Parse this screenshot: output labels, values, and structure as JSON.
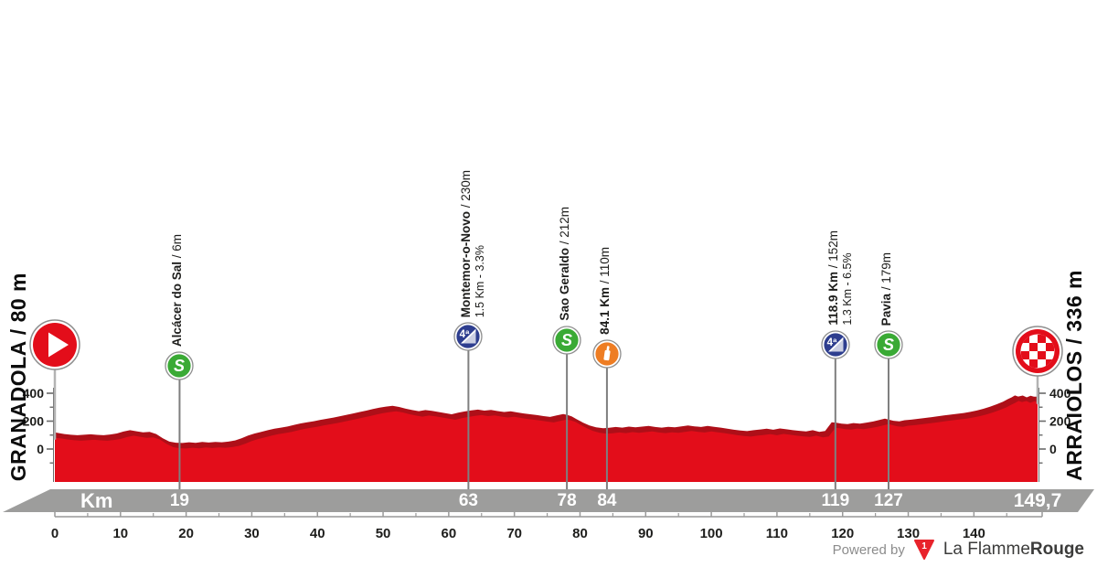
{
  "route": {
    "start_label": "GRANADOLA / 80 m",
    "finish_label": "ARRAIOLOS / 336 m",
    "km_axis_label": "Km",
    "total_km_label": "149,7",
    "label_separator": " / "
  },
  "markers": [
    {
      "type": "start",
      "km": 0,
      "icon_y": 377
    },
    {
      "type": "sprint",
      "km": 19,
      "label": "Alcácer do Sal",
      "elevation": "6m",
      "band_km": "19",
      "icon_y": 400
    },
    {
      "type": "climb_cat4",
      "km": 63,
      "label": "Montemor-o-Novo",
      "elevation": "230m",
      "detail": "1.5 Km - 3.3%",
      "band_km": "63",
      "icon_y": 368
    },
    {
      "type": "sprint",
      "km": 78,
      "label": "Sao Geraldo",
      "elevation": "212m",
      "band_km": "78",
      "icon_y": 372
    },
    {
      "type": "feed",
      "km": 84.1,
      "label": "84.1 Km",
      "elevation": "110m",
      "band_km": "84",
      "icon_y": 387
    },
    {
      "type": "climb_cat4",
      "km": 118.9,
      "label": "118.9 Km",
      "elevation": "152m",
      "detail": "1.3 Km - 6.5%",
      "band_km": "119",
      "icon_y": 377
    },
    {
      "type": "sprint",
      "km": 127,
      "label": "Pavia",
      "elevation": "179m",
      "band_km": "127",
      "icon_y": 377
    },
    {
      "type": "finish",
      "km": 149.7,
      "band_km": "149,7",
      "icon_y": 384
    }
  ],
  "footer": {
    "powered_by": "Powered by",
    "brand": "La Flamme",
    "brand_bold": "Rouge",
    "badge": "1"
  },
  "colors": {
    "profile": "#e30d1a",
    "ridge": "#ae0f18",
    "band": "#9d9d9c",
    "grid": "#7f7f7f",
    "stem": "#b3b3b3",
    "axis": "#6b6b6b",
    "ruler": "#999999",
    "text": "#1d1d1b",
    "sprint": "#3aaa35",
    "climb": "#2e3e8f",
    "feed": "#ee7d23",
    "marker_red": "#e30d1a",
    "ring": "#8e8e8e",
    "logo_red": "#e8232b"
  },
  "chart_data": {
    "type": "area",
    "title": "Stage elevation profile Grandola - Arraiolos",
    "x_unit": "km",
    "y_unit": "m",
    "x_range": [
      0,
      149.7
    ],
    "y_ticks_labeled": [
      0,
      200,
      400
    ],
    "y_ticks_minor": [
      -100,
      100,
      300
    ],
    "ruler_ticks": [
      0,
      10,
      20,
      30,
      40,
      50,
      60,
      70,
      80,
      90,
      100,
      110,
      120,
      130,
      140
    ],
    "start_elevation_m": 80,
    "finish_elevation_m": 336,
    "profile": [
      [
        0,
        80
      ],
      [
        1,
        76
      ],
      [
        2,
        68
      ],
      [
        3,
        63
      ],
      [
        4,
        60
      ],
      [
        5,
        63
      ],
      [
        6,
        66
      ],
      [
        7,
        62
      ],
      [
        8,
        60
      ],
      [
        9,
        65
      ],
      [
        10,
        72
      ],
      [
        11,
        86
      ],
      [
        12,
        96
      ],
      [
        13,
        88
      ],
      [
        14,
        80
      ],
      [
        15,
        84
      ],
      [
        16,
        68
      ],
      [
        17,
        38
      ],
      [
        18,
        14
      ],
      [
        19,
        6
      ],
      [
        20,
        4
      ],
      [
        21,
        9
      ],
      [
        22,
        5
      ],
      [
        23,
        11
      ],
      [
        24,
        7
      ],
      [
        25,
        12
      ],
      [
        26,
        9
      ],
      [
        27,
        14
      ],
      [
        28,
        22
      ],
      [
        29,
        38
      ],
      [
        30,
        58
      ],
      [
        31,
        72
      ],
      [
        32,
        84
      ],
      [
        33,
        96
      ],
      [
        34,
        106
      ],
      [
        35,
        114
      ],
      [
        36,
        122
      ],
      [
        37,
        134
      ],
      [
        38,
        144
      ],
      [
        39,
        152
      ],
      [
        40,
        160
      ],
      [
        41,
        170
      ],
      [
        42,
        178
      ],
      [
        43,
        186
      ],
      [
        44,
        196
      ],
      [
        45,
        206
      ],
      [
        46,
        216
      ],
      [
        47,
        226
      ],
      [
        48,
        236
      ],
      [
        49,
        248
      ],
      [
        50,
        258
      ],
      [
        51,
        265
      ],
      [
        52,
        270
      ],
      [
        53,
        262
      ],
      [
        54,
        250
      ],
      [
        55,
        240
      ],
      [
        56,
        232
      ],
      [
        57,
        240
      ],
      [
        58,
        234
      ],
      [
        59,
        226
      ],
      [
        60,
        218
      ],
      [
        61,
        210
      ],
      [
        62,
        221
      ],
      [
        63,
        230
      ],
      [
        64,
        238
      ],
      [
        65,
        243
      ],
      [
        66,
        236
      ],
      [
        67,
        241
      ],
      [
        68,
        233
      ],
      [
        69,
        226
      ],
      [
        70,
        231
      ],
      [
        71,
        223
      ],
      [
        72,
        216
      ],
      [
        73,
        210
      ],
      [
        74,
        204
      ],
      [
        75,
        197
      ],
      [
        76,
        191
      ],
      [
        77,
        202
      ],
      [
        78,
        212
      ],
      [
        78.6,
        206
      ],
      [
        79.3,
        194
      ],
      [
        80,
        176
      ],
      [
        81,
        150
      ],
      [
        82,
        130
      ],
      [
        83,
        117
      ],
      [
        84.1,
        110
      ],
      [
        85,
        113
      ],
      [
        86,
        119
      ],
      [
        87,
        114
      ],
      [
        88,
        121
      ],
      [
        89,
        116
      ],
      [
        90,
        121
      ],
      [
        91,
        126
      ],
      [
        92,
        119
      ],
      [
        93,
        114
      ],
      [
        94,
        120
      ],
      [
        95,
        117
      ],
      [
        96,
        123
      ],
      [
        97,
        129
      ],
      [
        98,
        123
      ],
      [
        99,
        119
      ],
      [
        100,
        126
      ],
      [
        101,
        120
      ],
      [
        102,
        114
      ],
      [
        103,
        107
      ],
      [
        104,
        99
      ],
      [
        105,
        94
      ],
      [
        106,
        89
      ],
      [
        107,
        96
      ],
      [
        108,
        101
      ],
      [
        109,
        106
      ],
      [
        110,
        99
      ],
      [
        111,
        108
      ],
      [
        112,
        102
      ],
      [
        113,
        96
      ],
      [
        114,
        91
      ],
      [
        115,
        87
      ],
      [
        116,
        96
      ],
      [
        117,
        84
      ],
      [
        117.9,
        90
      ],
      [
        118.9,
        152
      ],
      [
        119.6,
        149
      ],
      [
        120.4,
        143
      ],
      [
        121.3,
        139
      ],
      [
        122.2,
        147
      ],
      [
        123.2,
        142
      ],
      [
        124.2,
        150
      ],
      [
        125.2,
        158
      ],
      [
        126,
        167
      ],
      [
        127,
        179
      ],
      [
        127.6,
        171
      ],
      [
        128.3,
        163
      ],
      [
        129.2,
        159
      ],
      [
        130,
        167
      ],
      [
        131,
        171
      ],
      [
        132,
        177
      ],
      [
        133,
        183
      ],
      [
        134,
        189
      ],
      [
        135,
        195
      ],
      [
        136,
        201
      ],
      [
        137,
        207
      ],
      [
        138,
        213
      ],
      [
        139,
        219
      ],
      [
        140,
        227
      ],
      [
        141,
        237
      ],
      [
        142,
        249
      ],
      [
        143,
        264
      ],
      [
        144,
        281
      ],
      [
        145,
        300
      ],
      [
        145.7,
        318
      ],
      [
        146.3,
        331
      ],
      [
        146.8,
        345
      ],
      [
        147.3,
        337
      ],
      [
        148,
        344
      ],
      [
        148.6,
        331
      ],
      [
        149.2,
        342
      ],
      [
        149.7,
        336
      ]
    ]
  }
}
